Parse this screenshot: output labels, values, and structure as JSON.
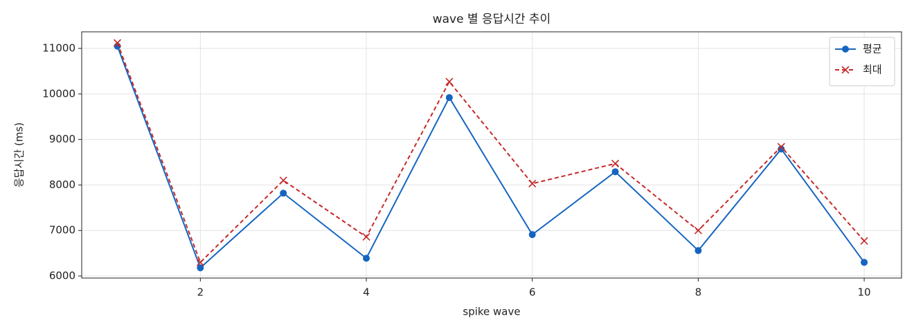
{
  "chart_data": {
    "type": "line",
    "title": "wave 별 응답시간 추이",
    "xlabel": "spike wave",
    "ylabel": "응답시간 (ms)",
    "x": [
      1,
      2,
      3,
      4,
      5,
      6,
      7,
      8,
      9,
      10
    ],
    "series": [
      {
        "name": "평균",
        "color": "#1565c0",
        "marker": "circle",
        "linestyle": "solid",
        "values": [
          11050,
          6180,
          7820,
          6390,
          9920,
          6910,
          8290,
          6560,
          8790,
          6300
        ]
      },
      {
        "name": "최대",
        "color": "#c62828",
        "marker": "x",
        "linestyle": "dashed",
        "values": [
          11120,
          6300,
          8100,
          6860,
          10270,
          8030,
          8470,
          7000,
          8840,
          6770
        ]
      }
    ],
    "xlim": [
      0.57,
      10.45
    ],
    "xticks": [
      2,
      4,
      6,
      8,
      10
    ],
    "ylim": [
      5955,
      11365
    ],
    "yticks": [
      6000,
      7000,
      8000,
      9000,
      10000,
      11000
    ],
    "grid": true,
    "legend": "upper right"
  }
}
